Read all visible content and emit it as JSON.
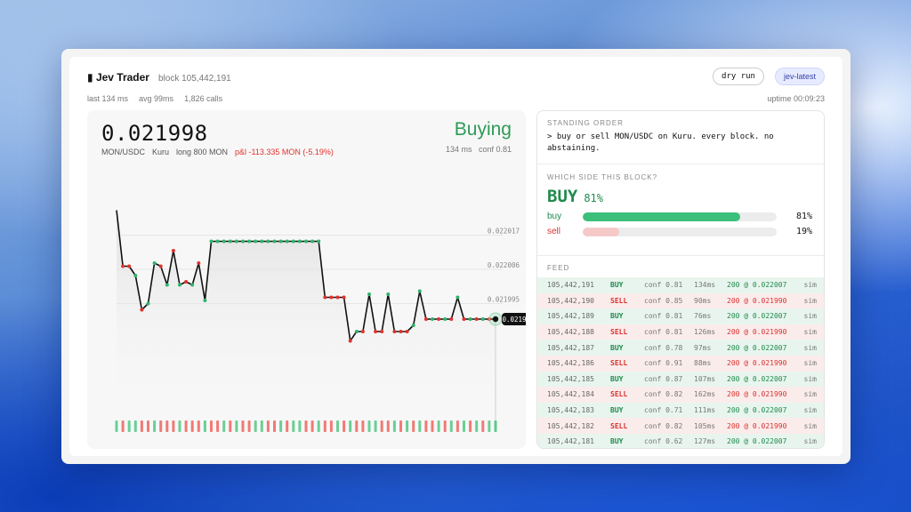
{
  "header": {
    "title": "Jev Trader",
    "block": "block 105,442,191",
    "last": "last 134 ms",
    "avg": "avg 99ms",
    "calls": "1,826 calls",
    "uptime": "uptime 00:09:23",
    "dry_run": "dry run",
    "model": "jev-latest"
  },
  "ticker": {
    "price": "0.021998",
    "pair": "MON/USDC",
    "venue": "Kuru",
    "position": "long 800 MON",
    "pnl": "p&l -113.335 MON (-5.19%)",
    "state": "Buying",
    "latency": "134 ms",
    "conf": "conf 0.81"
  },
  "chart_data": {
    "type": "line",
    "y_ticks": [
      "0.022017",
      "0.022006",
      "0.021995"
    ],
    "ylim": [
      0.02198,
      0.02203
    ],
    "current_label": "0.021998",
    "values": [
      0.022025,
      0.022007,
      0.022007,
      0.022004,
      0.021993,
      0.021995,
      0.022008,
      0.022007,
      0.022001,
      0.022012,
      0.022001,
      0.022002,
      0.022001,
      0.022008,
      0.021996,
      0.022015,
      0.022015,
      0.022015,
      0.022015,
      0.022015,
      0.022015,
      0.022015,
      0.022015,
      0.022015,
      0.022015,
      0.022015,
      0.022015,
      0.022015,
      0.022015,
      0.022015,
      0.022015,
      0.022015,
      0.022015,
      0.021997,
      0.021997,
      0.021997,
      0.021997,
      0.021983,
      0.021986,
      0.021986,
      0.021998,
      0.021986,
      0.021986,
      0.021998,
      0.021986,
      0.021986,
      0.021986,
      0.021988,
      0.021999,
      0.02199,
      0.02199,
      0.02199,
      0.02199,
      0.02199,
      0.021997,
      0.02199,
      0.02199,
      0.02199,
      0.02199,
      0.02199,
      0.02199
    ],
    "trade_sides": [
      "buy",
      "sell",
      "sell",
      "buy",
      "sell",
      "buy",
      "buy",
      "sell",
      "buy",
      "sell",
      "buy",
      "sell",
      "buy",
      "sell",
      "buy",
      "buy",
      "buy",
      "buy",
      "buy",
      "buy",
      "buy",
      "buy",
      "buy",
      "buy",
      "buy",
      "buy",
      "buy",
      "buy",
      "buy",
      "buy",
      "buy",
      "buy",
      "buy",
      "sell",
      "sell",
      "sell",
      "sell",
      "sell",
      "buy",
      "sell",
      "buy",
      "sell",
      "sell",
      "buy",
      "sell",
      "sell",
      "sell",
      "buy",
      "buy",
      "sell",
      "buy",
      "sell",
      "buy",
      "sell",
      "buy",
      "sell",
      "buy",
      "sell",
      "buy",
      "sell",
      "buy"
    ],
    "volume_sides": [
      "buy",
      "sell",
      "buy",
      "buy",
      "sell",
      "sell",
      "buy",
      "sell",
      "sell",
      "sell",
      "buy",
      "sell",
      "sell",
      "sell",
      "buy",
      "sell",
      "sell",
      "buy",
      "sell",
      "buy",
      "sell",
      "sell",
      "buy",
      "buy",
      "sell",
      "sell",
      "buy",
      "sell",
      "buy",
      "buy",
      "sell",
      "sell",
      "buy",
      "sell",
      "sell",
      "buy",
      "sell",
      "buy",
      "sell",
      "sell",
      "buy",
      "buy",
      "sell",
      "sell",
      "buy",
      "sell",
      "buy",
      "sell",
      "buy",
      "sell",
      "sell",
      "buy",
      "sell",
      "buy",
      "sell",
      "buy",
      "sell",
      "buy",
      "sell",
      "buy",
      "buy"
    ]
  },
  "standing_order": {
    "label": "STANDING ORDER",
    "text": "> buy or sell MON/USDC on Kuru. every block. no abstaining."
  },
  "decision": {
    "label": "WHICH SIDE THIS BLOCK?",
    "side": "BUY",
    "side_pct": "81%",
    "buy_label": "buy",
    "buy_pct": "81%",
    "buy_value": 0.81,
    "sell_label": "sell",
    "sell_pct": "19%",
    "sell_value": 0.19,
    "colors": {
      "buy": "#3bbf7a",
      "sell": "#f6c9c9"
    }
  },
  "feed": {
    "label": "FEED",
    "rows": [
      {
        "block": "105,442,191",
        "side": "BUY",
        "conf": "conf 0.81",
        "ms": "134ms",
        "fill": "200 @ 0.022007",
        "tag": "sim"
      },
      {
        "block": "105,442,190",
        "side": "SELL",
        "conf": "conf 0.85",
        "ms": "90ms",
        "fill": "200 @ 0.021990",
        "tag": "sim"
      },
      {
        "block": "105,442,189",
        "side": "BUY",
        "conf": "conf 0.81",
        "ms": "76ms",
        "fill": "200 @ 0.022007",
        "tag": "sim"
      },
      {
        "block": "105,442,188",
        "side": "SELL",
        "conf": "conf 0.81",
        "ms": "126ms",
        "fill": "200 @ 0.021990",
        "tag": "sim"
      },
      {
        "block": "105,442,187",
        "side": "BUY",
        "conf": "conf 0.78",
        "ms": "97ms",
        "fill": "200 @ 0.022007",
        "tag": "sim"
      },
      {
        "block": "105,442,186",
        "side": "SELL",
        "conf": "conf 0.91",
        "ms": "88ms",
        "fill": "200 @ 0.021990",
        "tag": "sim"
      },
      {
        "block": "105,442,185",
        "side": "BUY",
        "conf": "conf 0.87",
        "ms": "107ms",
        "fill": "200 @ 0.022007",
        "tag": "sim"
      },
      {
        "block": "105,442,184",
        "side": "SELL",
        "conf": "conf 0.82",
        "ms": "162ms",
        "fill": "200 @ 0.021990",
        "tag": "sim"
      },
      {
        "block": "105,442,183",
        "side": "BUY",
        "conf": "conf 0.71",
        "ms": "111ms",
        "fill": "200 @ 0.022007",
        "tag": "sim"
      },
      {
        "block": "105,442,182",
        "side": "SELL",
        "conf": "conf 0.82",
        "ms": "105ms",
        "fill": "200 @ 0.021990",
        "tag": "sim"
      },
      {
        "block": "105,442,181",
        "side": "BUY",
        "conf": "conf 0.62",
        "ms": "127ms",
        "fill": "200 @ 0.022007",
        "tag": "sim"
      }
    ]
  }
}
